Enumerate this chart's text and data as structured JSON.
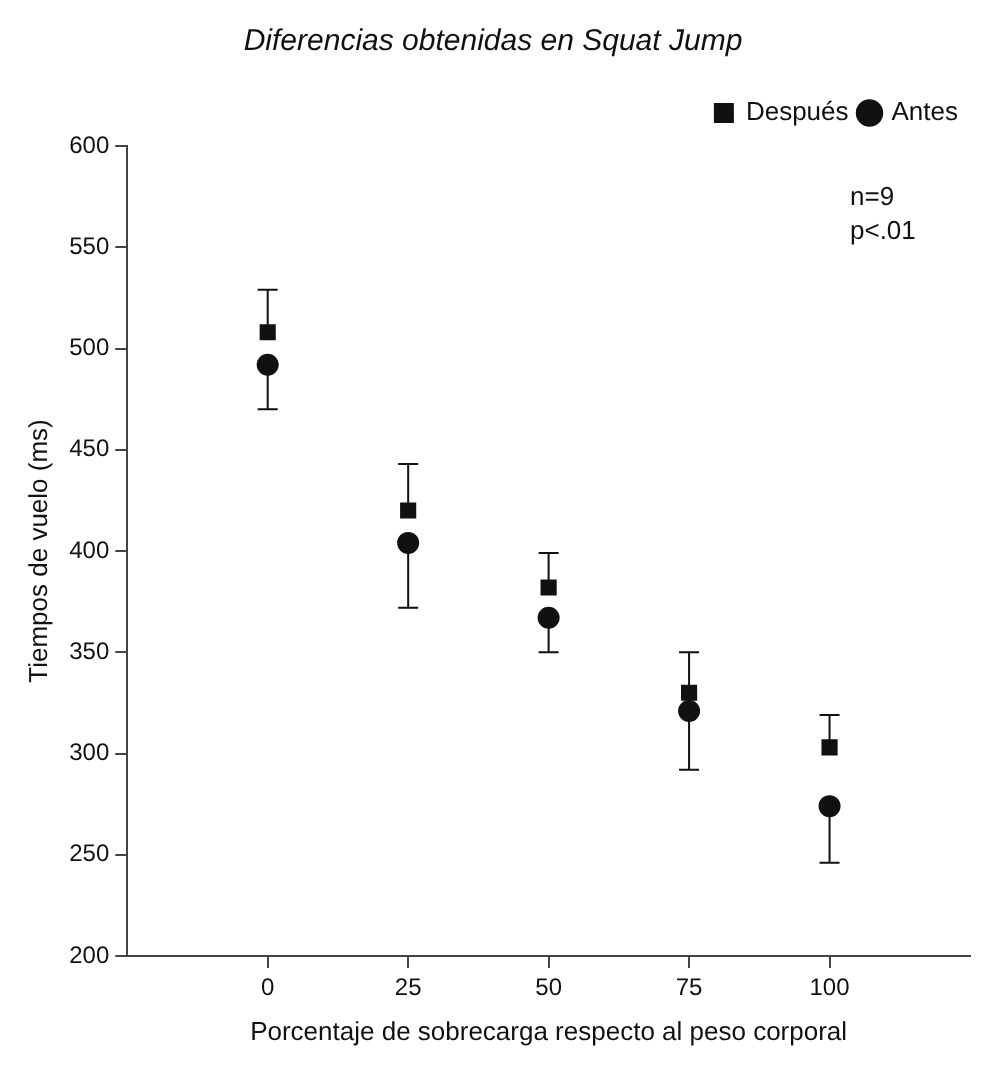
{
  "chart_data": {
    "type": "scatter",
    "title": "Diferencias obtenidas en Squat Jump",
    "xlabel": "Porcentaje de sobrecarga respecto al peso corporal",
    "ylabel": "Tiempos de vuelo (ms)",
    "x": [
      0,
      25,
      50,
      75,
      100
    ],
    "xlim": [
      -25,
      125
    ],
    "xticks": [
      0,
      25,
      50,
      75,
      100
    ],
    "ylim": [
      200,
      600
    ],
    "yticks": [
      200,
      250,
      300,
      350,
      400,
      450,
      500,
      550,
      600
    ],
    "series": [
      {
        "name": "Después",
        "color": "#111111",
        "marker": "square",
        "values": [
          508,
          420,
          382,
          330,
          303
        ],
        "errors": [
          [
            508,
            529
          ],
          [
            420,
            443
          ],
          [
            382,
            399
          ],
          [
            330,
            350
          ],
          [
            303,
            319
          ]
        ]
      },
      {
        "name": "Antes",
        "color": "#111111",
        "marker": "circle",
        "values": [
          492,
          404,
          367,
          321,
          274
        ],
        "errors": [
          [
            470,
            492
          ],
          [
            372,
            404
          ],
          [
            350,
            367
          ],
          [
            292,
            321
          ],
          [
            246,
            274
          ]
        ]
      }
    ],
    "legend": "top right",
    "grid": false,
    "annotations": [
      "n=9",
      "p<.01"
    ]
  }
}
